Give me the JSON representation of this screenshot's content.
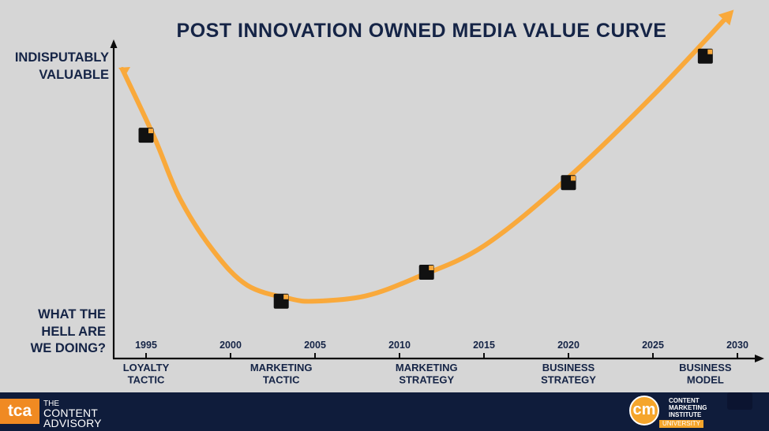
{
  "chart_data": {
    "type": "line",
    "title": "POST INNOVATION OWNED MEDIA VALUE CURVE",
    "y_labels": {
      "top": [
        "INDISPUTABLY",
        "VALUABLE"
      ],
      "bottom": [
        "WHAT THE",
        "HELL ARE",
        "WE DOING?"
      ]
    },
    "x_ticks": [
      "1995",
      "2000",
      "2005",
      "2010",
      "2015",
      "2020",
      "2025",
      "2030"
    ],
    "x_tick_values": [
      1995,
      2000,
      2005,
      2010,
      2015,
      2020,
      2025,
      2030
    ],
    "xlim": [
      1993,
      2031.5
    ],
    "ylim": [
      0,
      100
    ],
    "grid": false,
    "curve_color": "#f9a93b",
    "series": [
      {
        "points": [
          {
            "x": 1993.6,
            "y": 93
          },
          {
            "x": 1995.5,
            "y": 67
          },
          {
            "x": 1997,
            "y": 44
          },
          {
            "x": 1999,
            "y": 24
          },
          {
            "x": 2001,
            "y": 11
          },
          {
            "x": 2003.5,
            "y": 6
          },
          {
            "x": 2005,
            "y": 5
          },
          {
            "x": 2008,
            "y": 7
          },
          {
            "x": 2011,
            "y": 14
          },
          {
            "x": 2015,
            "y": 26
          },
          {
            "x": 2020,
            "y": 52
          },
          {
            "x": 2025,
            "y": 83
          },
          {
            "x": 2029.4,
            "y": 113
          }
        ]
      }
    ],
    "milestones": [
      {
        "x": 1995.0,
        "y": 68,
        "label": [
          "LOYALTY",
          "TACTIC"
        ]
      },
      {
        "x": 2003.0,
        "y": 5,
        "label": [
          "MARKETING",
          "TACTIC"
        ]
      },
      {
        "x": 2011.6,
        "y": 16,
        "label": [
          "MARKETING",
          "STRATEGY"
        ]
      },
      {
        "x": 2020.0,
        "y": 50,
        "label": [
          "BUSINESS",
          "STRATEGY"
        ]
      },
      {
        "x": 2028.1,
        "y": 98,
        "label": [
          "BUSINESS",
          "MODEL"
        ]
      }
    ]
  },
  "footer": {
    "tca_logo_text": "tca",
    "tca_name": [
      "THE",
      "CONTENT",
      "ADVISORY"
    ],
    "cmi_logo_text": "cm",
    "cmi_name": [
      "CONTENT",
      "MARKETING",
      "INSTITUTE"
    ],
    "cmi_sub": "UNIVERSITY"
  },
  "colors": {
    "background": "#d6d6d6",
    "navy": "#152446",
    "orange": "#f9a93b",
    "marker": "#111111"
  }
}
